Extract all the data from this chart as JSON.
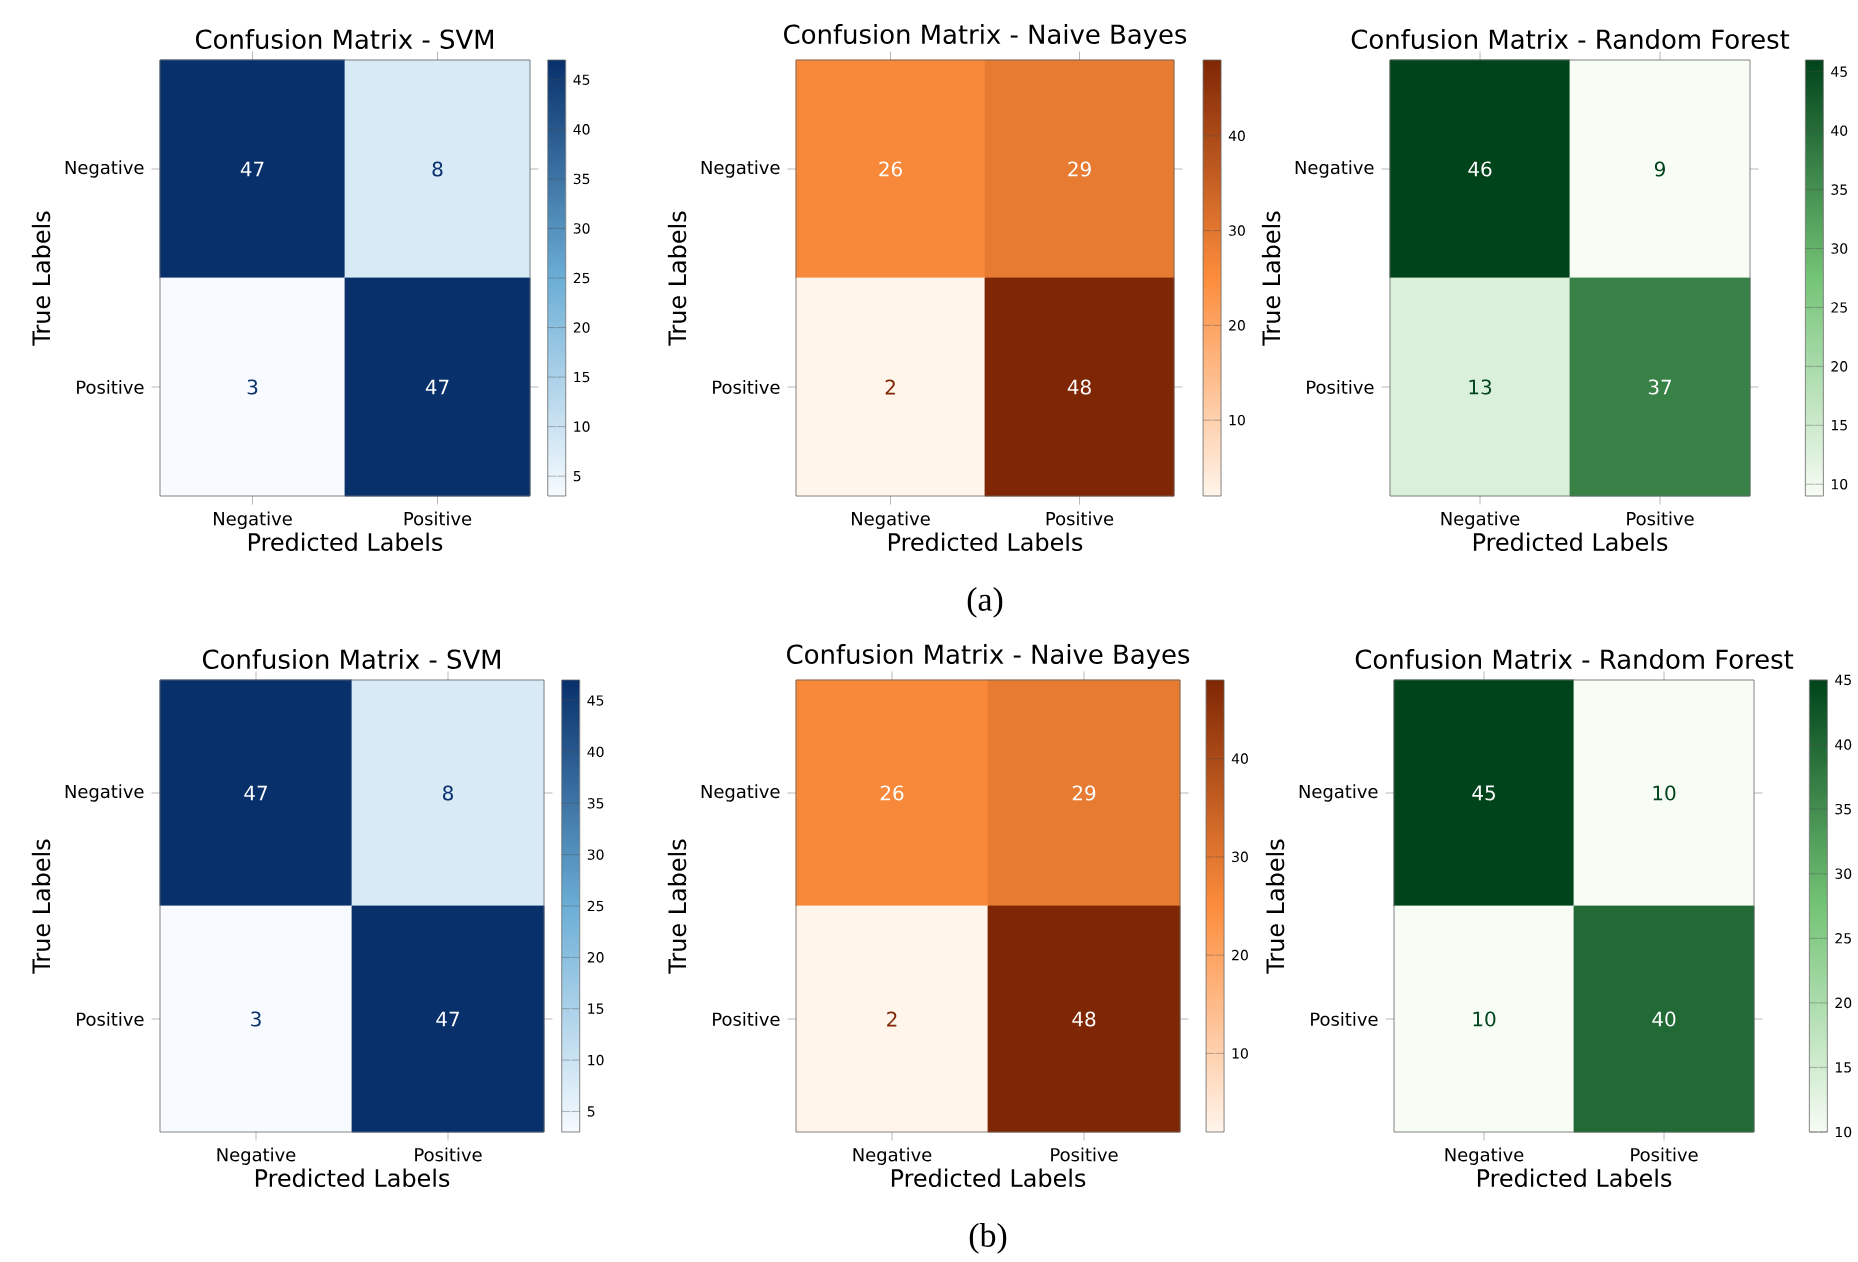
{
  "chart_data": [
    {
      "type": "heatmap",
      "title": "Confusion Matrix - SVM",
      "xlabel": "Predicted Labels",
      "ylabel": "True Labels",
      "categories": [
        "Negative",
        "Positive"
      ],
      "y_categories": [
        "Negative",
        "Positive"
      ],
      "cells": [
        [
          47,
          8
        ],
        [
          3,
          47
        ]
      ],
      "clim": [
        3,
        47
      ],
      "cticks": [
        5,
        10,
        15,
        20,
        25,
        30,
        35,
        40,
        45
      ],
      "colors": [
        "#f7fbff",
        "#6baed6",
        "#08306b"
      ],
      "data_labels": true
    },
    {
      "type": "heatmap",
      "title": "Confusion Matrix - Naive Bayes",
      "xlabel": "Predicted Labels",
      "ylabel": "True Labels",
      "categories": [
        "Negative",
        "Positive"
      ],
      "y_categories": [
        "Negative",
        "Positive"
      ],
      "cells": [
        [
          26,
          29
        ],
        [
          2,
          48
        ]
      ],
      "clim": [
        2,
        48
      ],
      "cticks": [
        10,
        20,
        30,
        40
      ],
      "colors": [
        "#fff5eb",
        "#fd8d3c",
        "#7f2704"
      ],
      "data_labels": true,
      "annotations": [
        "(a)"
      ]
    },
    {
      "type": "heatmap",
      "title": "Confusion Matrix - Random Forest",
      "xlabel": "Predicted Labels",
      "ylabel": "True Labels",
      "categories": [
        "Negative",
        "Positive"
      ],
      "y_categories": [
        "Negative",
        "Positive"
      ],
      "cells": [
        [
          46,
          9
        ],
        [
          13,
          37
        ]
      ],
      "clim": [
        9,
        46
      ],
      "cticks": [
        10,
        15,
        20,
        25,
        30,
        35,
        40,
        45
      ],
      "colors": [
        "#f7fcf5",
        "#74c476",
        "#00441b"
      ],
      "data_labels": true
    },
    {
      "type": "heatmap",
      "title": "Confusion Matrix - SVM",
      "xlabel": "Predicted Labels",
      "ylabel": "True Labels",
      "categories": [
        "Negative",
        "Positive"
      ],
      "y_categories": [
        "Negative",
        "Positive"
      ],
      "cells": [
        [
          47,
          8
        ],
        [
          3,
          47
        ]
      ],
      "clim": [
        3,
        47
      ],
      "cticks": [
        5,
        10,
        15,
        20,
        25,
        30,
        35,
        40,
        45
      ],
      "colors": [
        "#f7fbff",
        "#6baed6",
        "#08306b"
      ],
      "data_labels": true
    },
    {
      "type": "heatmap",
      "title": "Confusion Matrix - Naive Bayes",
      "xlabel": "Predicted Labels",
      "ylabel": "True Labels",
      "categories": [
        "Negative",
        "Positive"
      ],
      "y_categories": [
        "Negative",
        "Positive"
      ],
      "cells": [
        [
          26,
          29
        ],
        [
          2,
          48
        ]
      ],
      "clim": [
        2,
        48
      ],
      "cticks": [
        10,
        20,
        30,
        40
      ],
      "colors": [
        "#fff5eb",
        "#fd8d3c",
        "#7f2704"
      ],
      "data_labels": true,
      "annotations": [
        "(b)"
      ]
    },
    {
      "type": "heatmap",
      "title": "Confusion Matrix - Random Forest",
      "xlabel": "Predicted Labels",
      "ylabel": "True Labels",
      "categories": [
        "Negative",
        "Positive"
      ],
      "y_categories": [
        "Negative",
        "Positive"
      ],
      "cells": [
        [
          45,
          10
        ],
        [
          10,
          40
        ]
      ],
      "clim": [
        10,
        45
      ],
      "cticks": [
        10,
        15,
        20,
        25,
        30,
        35,
        40,
        45
      ],
      "colors": [
        "#f7fcf5",
        "#74c476",
        "#00441b"
      ],
      "data_labels": true
    }
  ]
}
